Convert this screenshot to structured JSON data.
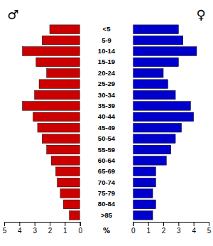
{
  "chart_data": {
    "type": "bar",
    "orientation": "horizontal",
    "categories": [
      ">85",
      "80-84",
      "75-79",
      "70-74",
      "65-69",
      "60-64",
      "55-59",
      "50-54",
      "45-49",
      "40-44",
      "35-39",
      "30-34",
      "25-29",
      "20-24",
      "15-19",
      "10-14",
      "5-9",
      "<5"
    ],
    "series": [
      {
        "name": "♂",
        "color": "#CC0000",
        "values": [
          0.7,
          1.1,
          1.3,
          1.5,
          1.6,
          1.9,
          2.2,
          2.5,
          2.8,
          3.1,
          3.8,
          3.0,
          2.7,
          2.2,
          2.9,
          3.8,
          2.5,
          2.0
        ]
      },
      {
        "name": "♀",
        "color": "#0000CC",
        "values": [
          1.3,
          1.5,
          1.3,
          1.5,
          1.5,
          2.2,
          2.5,
          2.8,
          3.2,
          4.0,
          3.8,
          2.8,
          2.3,
          2.0,
          3.0,
          4.2,
          3.3,
          3.0
        ]
      }
    ],
    "xlabel": "%",
    "xlim": [
      0,
      5.0
    ],
    "xticks": [
      0,
      1,
      2,
      3,
      4,
      5
    ],
    "grid": false
  }
}
